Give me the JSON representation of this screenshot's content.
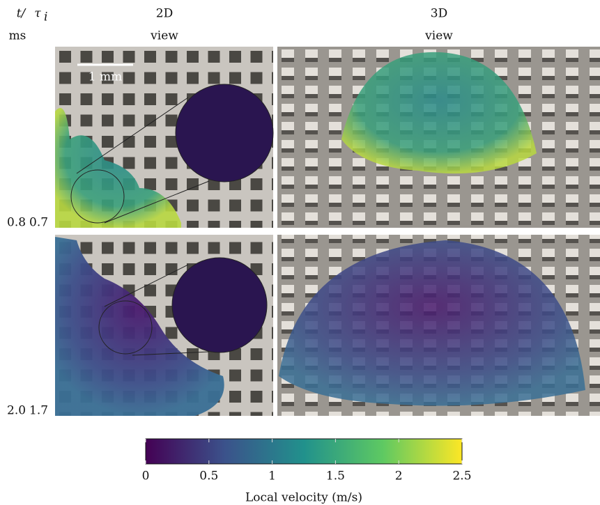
{
  "header": {
    "time_label": "t/",
    "time_unit": "ms",
    "tau_label": "τ",
    "tau_subscript": "i",
    "columns": [
      {
        "title": "2D",
        "subtitle": "view"
      },
      {
        "title": "3D",
        "subtitle": "view"
      }
    ]
  },
  "scale_bar": "1 mm",
  "rows": [
    {
      "t": "0.8",
      "tau": "0.7"
    },
    {
      "t": "2.0",
      "tau": "1.7"
    }
  ],
  "colorbar": {
    "label": "Local velocity (m/s)",
    "lim": [
      0,
      2.5
    ],
    "ticks": [
      0,
      0.5,
      1,
      1.5,
      2,
      2.5
    ],
    "colormap": [
      "#440154",
      "#3b528b",
      "#21918c",
      "#5ec962",
      "#fde725"
    ]
  }
}
